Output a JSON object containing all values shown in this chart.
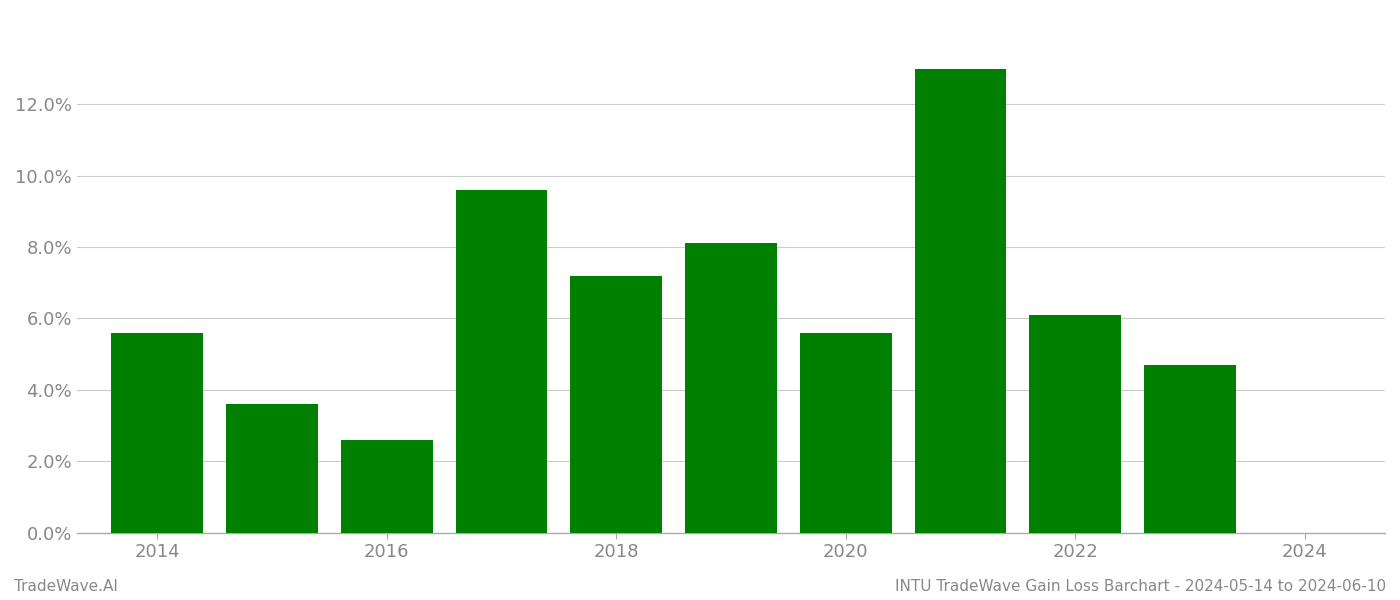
{
  "years": [
    2014,
    2015,
    2016,
    2017,
    2018,
    2019,
    2020,
    2021,
    2022,
    2023,
    2024
  ],
  "values": [
    0.056,
    0.036,
    0.026,
    0.096,
    0.072,
    0.081,
    0.056,
    0.13,
    0.061,
    0.047,
    0.0
  ],
  "bar_color": "#008000",
  "footer_left": "TradeWave.AI",
  "footer_right": "INTU TradeWave Gain Loss Barchart - 2024-05-14 to 2024-06-10",
  "ylim": [
    0,
    0.145
  ],
  "ytick_values": [
    0.0,
    0.02,
    0.04,
    0.06,
    0.08,
    0.1,
    0.12
  ],
  "xtick_positions": [
    2014,
    2016,
    2018,
    2020,
    2022,
    2024
  ],
  "background_color": "#ffffff",
  "grid_color": "#cccccc",
  "bar_width": 0.8,
  "tick_fontsize": 13,
  "footer_fontsize": 11,
  "axis_color": "#aaaaaa",
  "tick_color": "#888888"
}
